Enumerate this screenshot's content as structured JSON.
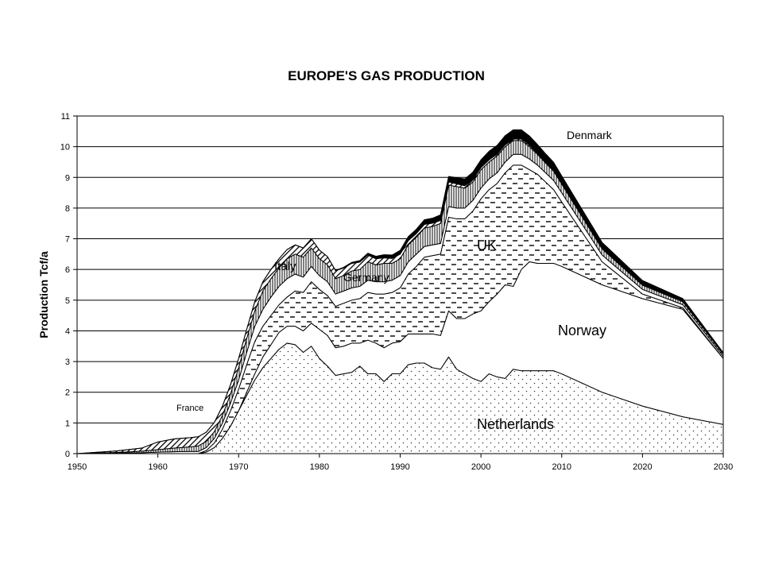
{
  "chart_data": {
    "type": "area",
    "title": "EUROPE'S GAS PRODUCTION",
    "xlabel": "",
    "ylabel": "Production Tcf/a",
    "xlim": [
      1950,
      2030
    ],
    "ylim": [
      0,
      11
    ],
    "xticks": [
      "1950",
      "1960",
      "1970",
      "1980",
      "1990",
      "2000",
      "2010",
      "2020",
      "2030"
    ],
    "yticks": [
      "0",
      "1",
      "2",
      "3",
      "4",
      "5",
      "6",
      "7",
      "8",
      "9",
      "10",
      "11"
    ],
    "grid": true,
    "stacked": true,
    "years": [
      1950,
      1955,
      1958,
      1960,
      1962,
      1964,
      1965,
      1966,
      1967,
      1968,
      1969,
      1970,
      1971,
      1972,
      1973,
      1974,
      1975,
      1976,
      1977,
      1978,
      1979,
      1980,
      1981,
      1982,
      1983,
      1984,
      1985,
      1986,
      1987,
      1988,
      1989,
      1990,
      1991,
      1992,
      1993,
      1994,
      1995,
      1996,
      1997,
      1998,
      1999,
      2000,
      2001,
      2002,
      2003,
      2004,
      2005,
      2006,
      2007,
      2008,
      2009,
      2010,
      2015,
      2020,
      2025,
      2030
    ],
    "series": [
      {
        "name": "Netherlands",
        "label": "Netherlands",
        "pattern": "dots",
        "values": [
          0,
          0,
          0,
          0,
          0,
          0,
          0,
          0.05,
          0.2,
          0.5,
          0.9,
          1.4,
          1.9,
          2.4,
          2.8,
          3.1,
          3.4,
          3.6,
          3.55,
          3.3,
          3.5,
          3.1,
          2.85,
          2.55,
          2.6,
          2.65,
          2.85,
          2.6,
          2.6,
          2.35,
          2.6,
          2.6,
          2.9,
          2.95,
          2.95,
          2.8,
          2.75,
          3.15,
          2.75,
          2.6,
          2.45,
          2.35,
          2.6,
          2.5,
          2.45,
          2.75,
          2.7,
          2.7,
          2.7,
          2.7,
          2.7,
          2.6,
          2.0,
          1.55,
          1.2,
          0.95
        ]
      },
      {
        "name": "Norway",
        "label": "Norway",
        "pattern": "blank",
        "values": [
          0,
          0,
          0,
          0,
          0,
          0,
          0,
          0,
          0,
          0,
          0,
          0,
          0.1,
          0.2,
          0.35,
          0.45,
          0.55,
          0.55,
          0.6,
          0.7,
          0.75,
          0.95,
          1.0,
          0.9,
          0.9,
          0.95,
          0.75,
          1.1,
          1.0,
          1.1,
          1.0,
          1.05,
          1.0,
          0.95,
          0.95,
          1.1,
          1.1,
          1.5,
          1.65,
          1.8,
          2.1,
          2.3,
          2.35,
          2.7,
          3.05,
          2.7,
          3.3,
          3.55,
          3.5,
          3.5,
          3.5,
          3.5,
          3.5,
          3.5,
          3.5,
          2.15
        ]
      },
      {
        "name": "UK",
        "label": "UK",
        "pattern": "dashes",
        "values": [
          0,
          0,
          0,
          0,
          0,
          0,
          0,
          0.05,
          0.15,
          0.3,
          0.5,
          0.7,
          0.9,
          1.05,
          1.0,
          0.95,
          0.9,
          0.95,
          1.15,
          1.25,
          1.35,
          1.3,
          1.3,
          1.35,
          1.4,
          1.4,
          1.45,
          1.55,
          1.6,
          1.75,
          1.65,
          1.75,
          1.95,
          2.2,
          2.5,
          2.55,
          2.65,
          3.05,
          3.25,
          3.25,
          3.35,
          3.65,
          3.65,
          3.6,
          3.65,
          3.95,
          3.4,
          3.0,
          2.9,
          2.65,
          2.4,
          2.1,
          0.75,
          0.15,
          0.05,
          0
        ]
      },
      {
        "name": "Germany",
        "label": "Germany",
        "pattern": "blank",
        "values": [
          0,
          0.02,
          0.03,
          0.05,
          0.06,
          0.07,
          0.07,
          0.1,
          0.15,
          0.2,
          0.25,
          0.3,
          0.4,
          0.5,
          0.55,
          0.6,
          0.6,
          0.6,
          0.55,
          0.5,
          0.5,
          0.45,
          0.45,
          0.4,
          0.4,
          0.4,
          0.4,
          0.4,
          0.4,
          0.4,
          0.4,
          0.4,
          0.4,
          0.4,
          0.35,
          0.35,
          0.35,
          0.35,
          0.35,
          0.35,
          0.35,
          0.35,
          0.35,
          0.35,
          0.35,
          0.35,
          0.35,
          0.35,
          0.3,
          0.3,
          0.3,
          0.3,
          0.22,
          0.15,
          0.1,
          0.07
        ]
      },
      {
        "name": "Italy",
        "label": "Italy",
        "pattern": "vlines",
        "values": [
          0,
          0.02,
          0.05,
          0.08,
          0.12,
          0.15,
          0.18,
          0.2,
          0.22,
          0.25,
          0.3,
          0.4,
          0.45,
          0.5,
          0.6,
          0.6,
          0.6,
          0.65,
          0.65,
          0.65,
          0.6,
          0.55,
          0.55,
          0.5,
          0.5,
          0.55,
          0.55,
          0.6,
          0.55,
          0.6,
          0.55,
          0.55,
          0.55,
          0.55,
          0.6,
          0.6,
          0.65,
          0.7,
          0.7,
          0.65,
          0.6,
          0.6,
          0.55,
          0.55,
          0.5,
          0.45,
          0.45,
          0.4,
          0.35,
          0.32,
          0.3,
          0.28,
          0.2,
          0.14,
          0.1,
          0.07
        ]
      },
      {
        "name": "France",
        "label": "France",
        "pattern": "diag",
        "values": [
          0,
          0.05,
          0.1,
          0.25,
          0.3,
          0.3,
          0.3,
          0.3,
          0.3,
          0.3,
          0.3,
          0.3,
          0.3,
          0.3,
          0.3,
          0.3,
          0.3,
          0.3,
          0.3,
          0.3,
          0.3,
          0.28,
          0.27,
          0.26,
          0.25,
          0.25,
          0.24,
          0.22,
          0.2,
          0.18,
          0.16,
          0.15,
          0.14,
          0.12,
          0.12,
          0.11,
          0.1,
          0.1,
          0.09,
          0.08,
          0.08,
          0.07,
          0.07,
          0.06,
          0.06,
          0.05,
          0.05,
          0.05,
          0.04,
          0.03,
          0.03,
          0.02,
          0.01,
          0,
          0,
          0
        ]
      },
      {
        "name": "Denmark",
        "label": "Denmark",
        "pattern": "solid",
        "values": [
          0,
          0,
          0,
          0,
          0,
          0,
          0,
          0,
          0,
          0,
          0,
          0,
          0,
          0,
          0,
          0,
          0,
          0,
          0,
          0,
          0,
          0,
          0,
          0.01,
          0.02,
          0.03,
          0.05,
          0.06,
          0.08,
          0.1,
          0.11,
          0.12,
          0.13,
          0.14,
          0.15,
          0.16,
          0.18,
          0.18,
          0.2,
          0.22,
          0.24,
          0.25,
          0.28,
          0.28,
          0.3,
          0.3,
          0.3,
          0.3,
          0.28,
          0.27,
          0.26,
          0.25,
          0.2,
          0.15,
          0.1,
          0.05
        ]
      }
    ]
  }
}
